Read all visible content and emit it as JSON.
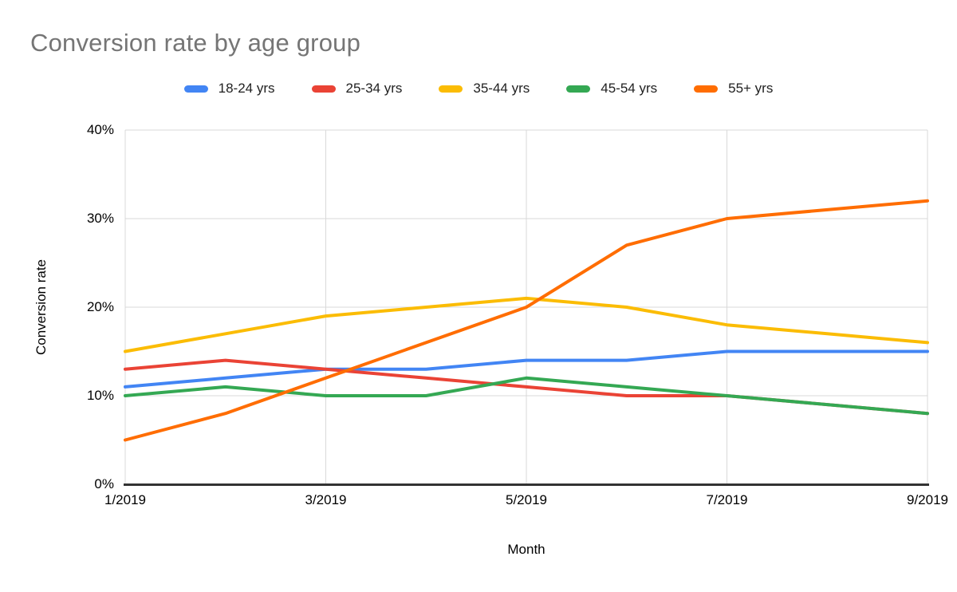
{
  "title": "Conversion rate by age group",
  "colors": {
    "title_text": "#757575",
    "legend_text": "#212121",
    "axis_text": "#000000",
    "gridline": "#d9d9d9",
    "axis_line": "#333333",
    "background": "#ffffff"
  },
  "chart_data": {
    "type": "line",
    "title": "Conversion rate by age group",
    "xlabel": "Month",
    "ylabel": "Conversion rate",
    "x": [
      "1/2019",
      "2/2019",
      "3/2019",
      "4/2019",
      "5/2019",
      "6/2019",
      "7/2019",
      "8/2019",
      "9/2019"
    ],
    "x_tick_indices": [
      0,
      2,
      4,
      6,
      8
    ],
    "x_tick_labels": [
      "1/2019",
      "3/2019",
      "5/2019",
      "7/2019",
      "9/2019"
    ],
    "ylim": [
      0,
      40
    ],
    "yticks": [
      0,
      10,
      20,
      30,
      40
    ],
    "ytick_labels": [
      "0%",
      "10%",
      "20%",
      "30%",
      "40%"
    ],
    "grid": "on",
    "legend_position": "top",
    "series": [
      {
        "name": "18-24 yrs",
        "color": "#4285f4",
        "values": [
          11,
          12,
          13,
          13,
          14,
          14,
          15,
          15,
          15
        ]
      },
      {
        "name": "25-34 yrs",
        "color": "#ea4335",
        "values": [
          13,
          14,
          13,
          12,
          11,
          10,
          10,
          9,
          8
        ]
      },
      {
        "name": "35-44 yrs",
        "color": "#fbbc04",
        "values": [
          15,
          17,
          19,
          20,
          21,
          20,
          18,
          17,
          16
        ]
      },
      {
        "name": "45-54 yrs",
        "color": "#34a853",
        "values": [
          10,
          11,
          10,
          10,
          12,
          11,
          10,
          9,
          8
        ]
      },
      {
        "name": "55+ yrs",
        "color": "#ff6d01",
        "values": [
          5,
          8,
          12,
          16,
          20,
          27,
          30,
          31,
          32
        ]
      }
    ]
  }
}
